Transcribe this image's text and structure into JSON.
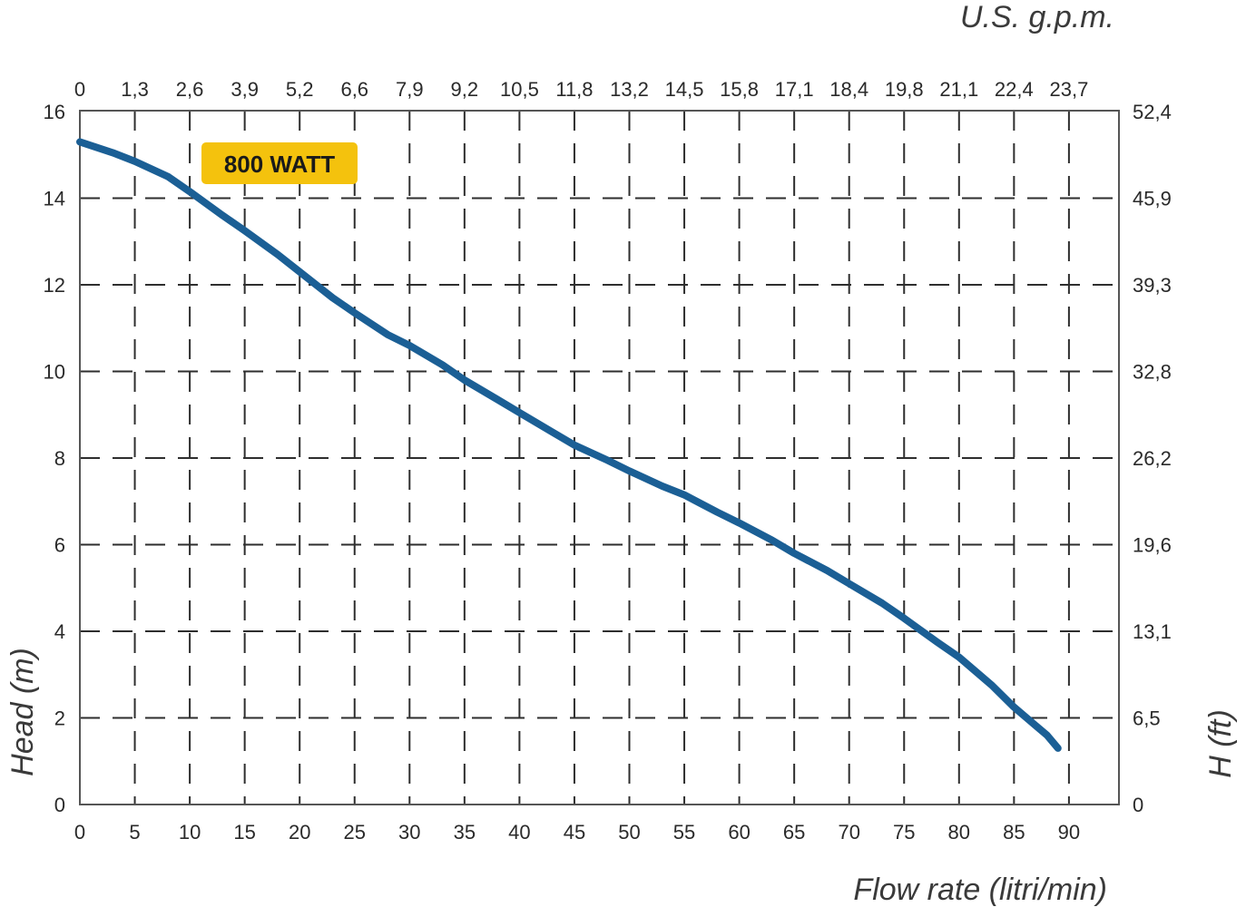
{
  "chart_data": {
    "type": "line",
    "xlabel": "Flow rate (litri/min)",
    "ylabel": "Head (m)",
    "x2label": "U.S. g.p.m.",
    "y2label": "H (ft)",
    "xlim": [
      0,
      90
    ],
    "ylim": [
      0,
      16
    ],
    "x_ticks": [
      "0",
      "5",
      "10",
      "15",
      "20",
      "25",
      "30",
      "35",
      "40",
      "45",
      "50",
      "55",
      "60",
      "65",
      "70",
      "75",
      "80",
      "85",
      "90"
    ],
    "y_ticks": [
      "0",
      "2",
      "4",
      "6",
      "8",
      "10",
      "12",
      "14",
      "16"
    ],
    "x2_ticks": [
      "0",
      "1,3",
      "2,6",
      "3,9",
      "5,2",
      "6,6",
      "7,9",
      "9,2",
      "10,5",
      "11,8",
      "13,2",
      "14,5",
      "15,8",
      "17,1",
      "18,4",
      "19,8",
      "21,1",
      "22,4",
      "23,7"
    ],
    "y2_ticks": [
      "0",
      "6,5",
      "13,1",
      "19,6",
      "26,2",
      "32,8",
      "39,3",
      "45,9",
      "52,4"
    ],
    "grid": true,
    "annotation": "800 WATT",
    "colors": {
      "curve": "#1b5f95",
      "badge": "#f4c20d"
    },
    "series": [
      {
        "name": "800 WATT",
        "points": [
          [
            0,
            15.3
          ],
          [
            3,
            15.05
          ],
          [
            5,
            14.85
          ],
          [
            8,
            14.5
          ],
          [
            10,
            14.15
          ],
          [
            13,
            13.6
          ],
          [
            15,
            13.25
          ],
          [
            18,
            12.7
          ],
          [
            20,
            12.3
          ],
          [
            23,
            11.7
          ],
          [
            25,
            11.35
          ],
          [
            28,
            10.85
          ],
          [
            30,
            10.6
          ],
          [
            33,
            10.15
          ],
          [
            35,
            9.8
          ],
          [
            38,
            9.35
          ],
          [
            40,
            9.05
          ],
          [
            43,
            8.6
          ],
          [
            45,
            8.3
          ],
          [
            48,
            7.95
          ],
          [
            50,
            7.7
          ],
          [
            53,
            7.35
          ],
          [
            55,
            7.15
          ],
          [
            58,
            6.75
          ],
          [
            60,
            6.5
          ],
          [
            63,
            6.1
          ],
          [
            65,
            5.8
          ],
          [
            68,
            5.4
          ],
          [
            70,
            5.1
          ],
          [
            73,
            4.65
          ],
          [
            75,
            4.3
          ],
          [
            78,
            3.75
          ],
          [
            80,
            3.4
          ],
          [
            83,
            2.75
          ],
          [
            85,
            2.25
          ],
          [
            88,
            1.6
          ],
          [
            89,
            1.3
          ]
        ]
      }
    ]
  }
}
